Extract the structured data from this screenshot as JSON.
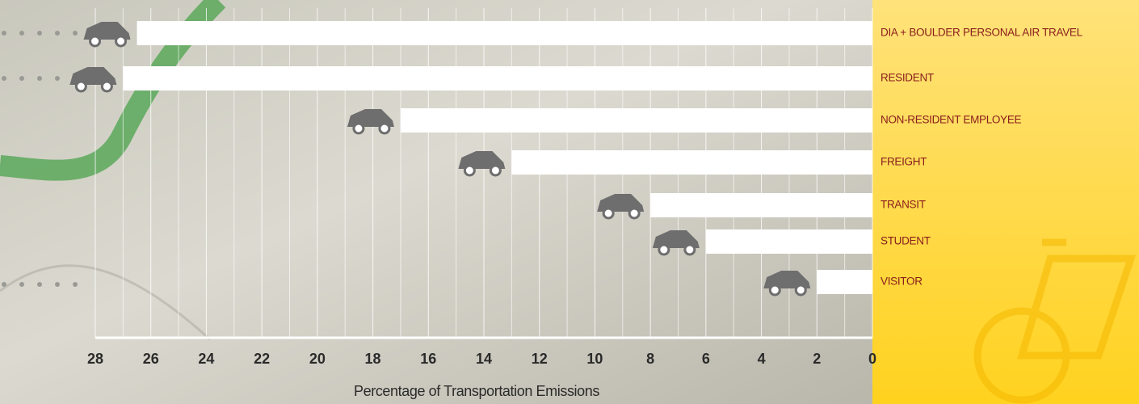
{
  "chart_data": {
    "type": "barh",
    "categories": [
      "DIA + BOULDER PERSONAL AIR TRAVEL",
      "RESIDENT",
      "NON-RESIDENT EMPLOYEE",
      "FREIGHT",
      "TRANSIT",
      "STUDENT",
      "VISITOR"
    ],
    "values": [
      26.5,
      27,
      17,
      13,
      8,
      6,
      2
    ],
    "color": "#ffffff",
    "xlim": [
      28,
      0
    ],
    "xticks": [
      28,
      26,
      24,
      22,
      20,
      18,
      16,
      14,
      12,
      10,
      8,
      6,
      4,
      2,
      0
    ],
    "xminorticks": [
      27,
      25,
      23,
      21,
      19,
      17,
      15,
      13,
      11,
      9,
      7,
      5,
      3,
      1
    ],
    "xlabel": "Percentage of Transportation Emissions",
    "grid": true
  }
}
